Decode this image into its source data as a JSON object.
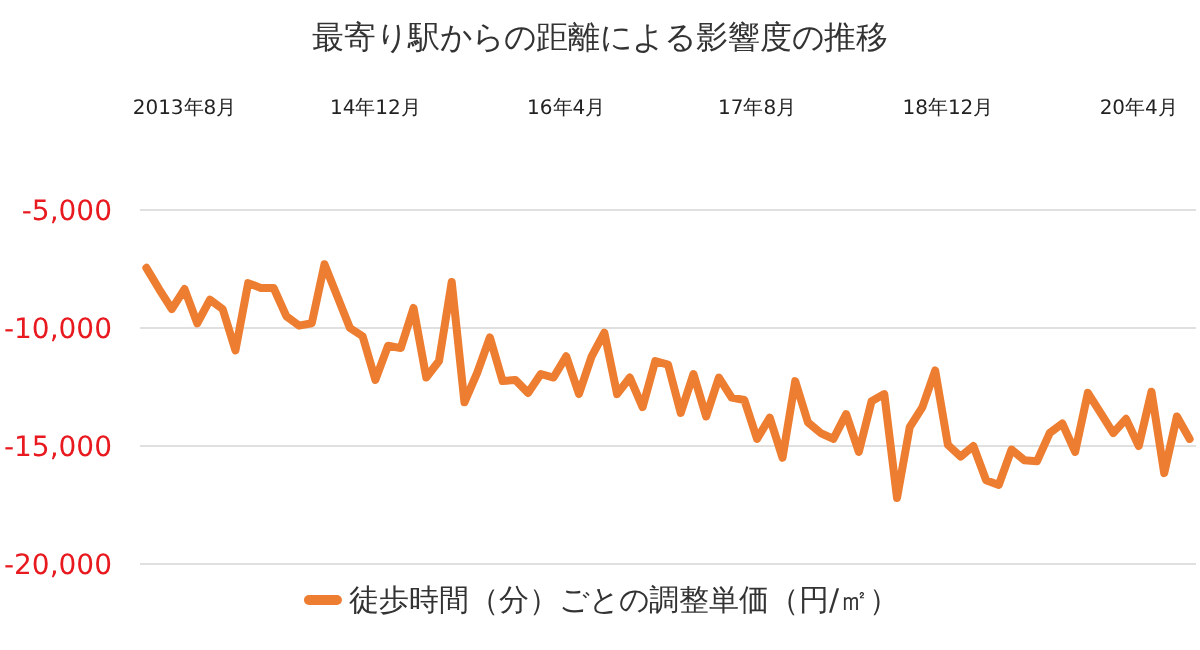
{
  "chart_data": {
    "type": "line",
    "title": "最寄り駅からの距離による影響度の推移",
    "categories": [
      null,
      null,
      null,
      "2013年8月",
      null,
      null,
      null,
      null,
      null,
      null,
      null,
      null,
      null,
      null,
      null,
      null,
      null,
      null,
      "14年12月",
      null,
      null,
      null,
      null,
      null,
      null,
      null,
      null,
      null,
      null,
      null,
      null,
      null,
      null,
      "16年4月",
      null,
      null,
      null,
      null,
      null,
      null,
      null,
      null,
      null,
      null,
      null,
      null,
      null,
      null,
      "17年8月",
      null,
      null,
      null,
      null,
      null,
      null,
      null,
      null,
      null,
      null,
      null,
      null,
      null,
      null,
      "18年12月",
      null,
      null,
      null,
      null,
      null,
      null,
      null,
      null,
      null,
      null,
      null,
      null,
      null,
      null,
      "20年4月",
      null,
      null,
      null,
      null
    ],
    "series": [
      {
        "name": "徒歩時間（分）ごとの調整単価（円/㎡）",
        "color": "#ed7d31",
        "values": [
          -7450,
          -8350,
          -9200,
          -8350,
          -9800,
          -8800,
          -9200,
          -10950,
          -8100,
          -8300,
          -8300,
          -9500,
          -9900,
          -9800,
          -7300,
          -8650,
          -10000,
          -10350,
          -12200,
          -10750,
          -10850,
          -9150,
          -12100,
          -11400,
          -8050,
          -13150,
          -11900,
          -10400,
          -12250,
          -12200,
          -12750,
          -11950,
          -12100,
          -11200,
          -12800,
          -11200,
          -10200,
          -12800,
          -12100,
          -13350,
          -11400,
          -11550,
          -13600,
          -11950,
          -13750,
          -12100,
          -12950,
          -13050,
          -14700,
          -13800,
          -15500,
          -12250,
          -14000,
          -14450,
          -14700,
          -13650,
          -15250,
          -13100,
          -12800,
          -17200,
          -14200,
          -13350,
          -11800,
          -14950,
          -15450,
          -15000,
          -16450,
          -16650,
          -15150,
          -15600,
          -15650,
          -14450,
          -14050,
          -15250,
          -12750,
          -13600,
          -14450,
          -13850,
          -15000,
          -12700,
          -16150,
          -13750,
          -14700
        ]
      }
    ],
    "ylim": [
      -20000,
      -5000
    ],
    "yticks": [
      {
        "value": -5000,
        "label": "-5,000"
      },
      {
        "value": -10000,
        "label": "-10,000"
      },
      {
        "value": -15000,
        "label": "-15,000"
      },
      {
        "value": -20000,
        "label": "-20,000"
      }
    ],
    "grid": "y",
    "legend": "bottom"
  }
}
